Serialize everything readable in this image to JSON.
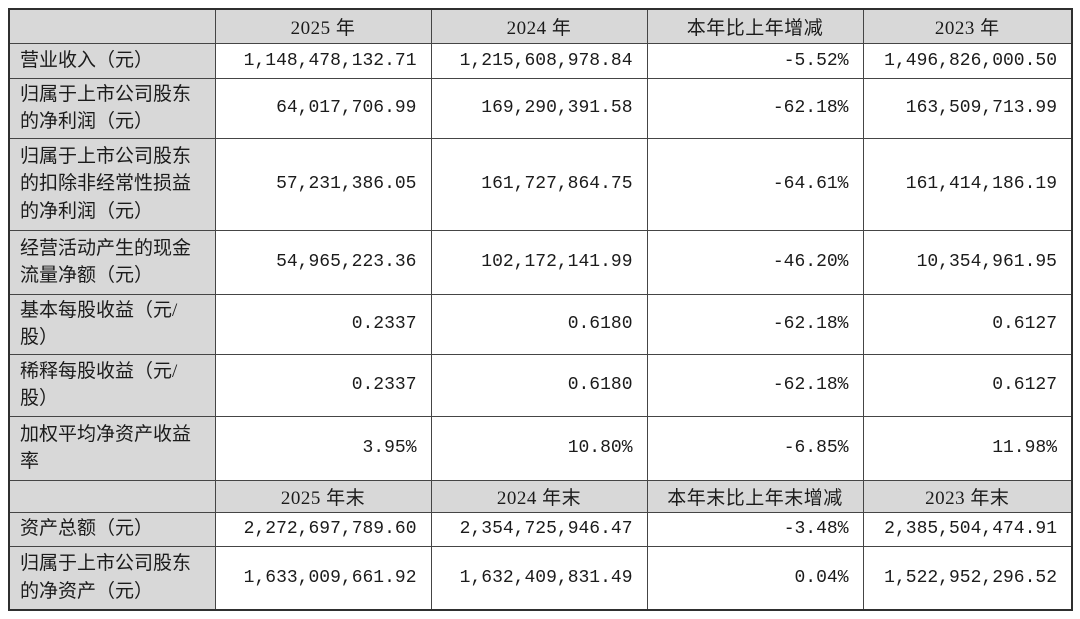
{
  "table": {
    "title_semantic": "主要会计数据和财务指标",
    "colors": {
      "header_bg": "#d8d8d8",
      "label_bg": "#d8d8d8",
      "value_bg": "#ffffff",
      "border": "#454545",
      "text": "#1b1b1b"
    },
    "header_row_period": [
      "",
      "2025 年",
      "2024 年",
      "本年比上年增减",
      "2023 年"
    ],
    "rows_period": [
      [
        "营业收入（元）",
        "1,148,478,132.71",
        "1,215,608,978.84",
        "-5.52%",
        "1,496,826,000.50"
      ],
      [
        "归属于上市公司股东的净利润（元）",
        "64,017,706.99",
        "169,290,391.58",
        "-62.18%",
        "163,509,713.99"
      ],
      [
        "归属于上市公司股东的扣除非经常性损益的净利润（元）",
        "57,231,386.05",
        "161,727,864.75",
        "-64.61%",
        "161,414,186.19"
      ],
      [
        "经营活动产生的现金流量净额（元）",
        "54,965,223.36",
        "102,172,141.99",
        "-46.20%",
        "10,354,961.95"
      ],
      [
        "基本每股收益（元/股）",
        "0.2337",
        "0.6180",
        "-62.18%",
        "0.6127"
      ],
      [
        "稀释每股收益（元/股）",
        "0.2337",
        "0.6180",
        "-62.18%",
        "0.6127"
      ],
      [
        "加权平均净资产收益率",
        "3.95%",
        "10.80%",
        "-6.85%",
        "11.98%"
      ]
    ],
    "header_row_eop": [
      "",
      "2025 年末",
      "2024 年末",
      "本年末比上年末增减",
      "2023 年末"
    ],
    "rows_eop": [
      [
        "资产总额（元）",
        "2,272,697,789.60",
        "2,354,725,946.47",
        "-3.48%",
        "2,385,504,474.91"
      ],
      [
        "归属于上市公司股东的净资产（元）",
        "1,633,009,661.92",
        "1,632,409,831.49",
        "0.04%",
        "1,522,952,296.52"
      ]
    ]
  }
}
